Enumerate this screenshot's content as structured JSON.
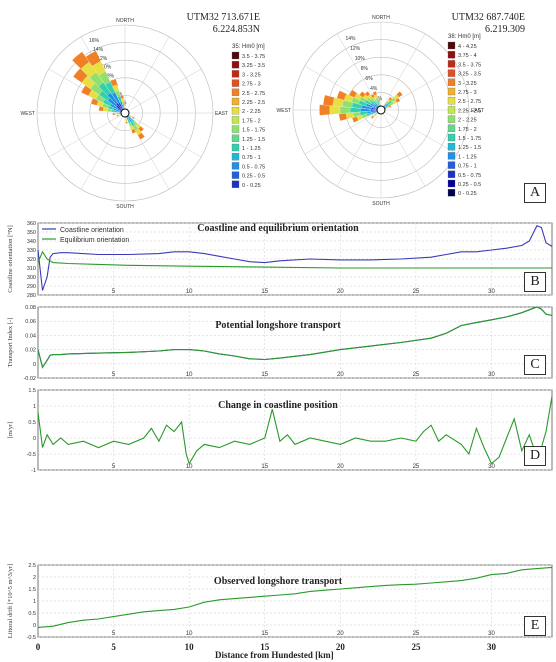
{
  "roses": [
    {
      "coord_line1": "UTM32  713.671E",
      "coord_line2": "6.224.853N",
      "legend_title": "35: Hm0 [m]",
      "legend": [
        "3.5 - 3.75",
        "3.25 - 3.5",
        "3 - 3.25",
        "2.75 - 3",
        "2.5 - 2.75",
        "2.25 - 2.5",
        "2 - 2.25",
        "1.75 - 2",
        "1.5 - 1.75",
        "1.25 - 1.5",
        "1 - 1.25",
        "0.75 - 1",
        "0.5 - 0.75",
        "0.25 - 0.5",
        "0 - 0.25"
      ],
      "ring_labels": [
        "2%",
        "4%",
        "6%",
        "8%",
        "10%",
        "12%",
        "14%",
        "16%"
      ],
      "directions": {
        "n": "NORTH",
        "s": "SOUTH",
        "e": "EAST",
        "w": "WEST"
      }
    },
    {
      "coord_line1": "UTM32  687.740E",
      "coord_line2": "6.219.309",
      "legend_title": "38: Hm0 [m]",
      "legend": [
        "4 - 4.25",
        "3.75 - 4",
        "3.5 - 3.75",
        "3.25 - 3.5",
        "3 - 3.25",
        "2.75 - 3",
        "2.5 - 2.75",
        "2.25 - 2.5",
        "2 - 2.25",
        "1.75 - 2",
        "1.5 - 1.75",
        "1.25 - 1.5",
        "1 - 1.25",
        "0.75 - 1",
        "0.5 - 0.75",
        "0.25 - 0.5",
        "0 - 0.25"
      ],
      "ring_labels": [
        "2%",
        "4%",
        "6%",
        "8%",
        "10%",
        "12%",
        "14%"
      ],
      "directions": {
        "n": "NORTH",
        "s": "SOUTH",
        "e": "EAST",
        "w": "WEST"
      }
    }
  ],
  "letters": {
    "a": "A",
    "b": "B",
    "c": "C",
    "d": "D",
    "e": "E"
  },
  "chart_data": [
    {
      "type": "line",
      "title": "Coastline and equilibrium orientation",
      "ylabel": "Coastline orientation [°N]",
      "ylim": [
        280,
        360
      ],
      "xlim": [
        0,
        34
      ],
      "yticks": [
        280,
        290,
        300,
        310,
        320,
        330,
        340,
        350,
        360
      ],
      "xticks": [
        5,
        10,
        15,
        20,
        25,
        30
      ],
      "legend": [
        "Coastline orientation",
        "Equilibrium orientation"
      ],
      "legend_position": "top-left",
      "series": [
        {
          "name": "Coastline orientation",
          "color": "#3a3ab8",
          "x": [
            0,
            0.3,
            0.6,
            0.8,
            1.0,
            1.5,
            2,
            4,
            6,
            8,
            9,
            10,
            11,
            12,
            13,
            14,
            15,
            16,
            18,
            20,
            22,
            24,
            26,
            27,
            28,
            29,
            30,
            31,
            32,
            32.5,
            33,
            33.3,
            33.6,
            34
          ],
          "y": [
            330,
            285,
            300,
            322,
            326,
            327,
            327,
            325,
            325,
            326,
            328,
            328,
            326,
            323,
            320,
            317,
            316,
            318,
            320,
            319,
            319,
            320,
            322,
            325,
            328,
            328,
            330,
            332,
            335,
            340,
            357,
            355,
            338,
            334
          ]
        },
        {
          "name": "Equilibrium orientation",
          "color": "#2a9a2a",
          "x": [
            0,
            0.3,
            0.6,
            1,
            2,
            4,
            6,
            10,
            15,
            20,
            25,
            30,
            34
          ],
          "y": [
            316,
            328,
            320,
            316,
            315,
            314,
            313,
            312,
            311,
            310,
            310,
            310,
            310
          ]
        }
      ]
    },
    {
      "type": "line",
      "title": "Potential longshore transport",
      "ylabel": "Transport Index [-]",
      "ylim": [
        -0.02,
        0.08
      ],
      "xlim": [
        0,
        34
      ],
      "yticks": [
        -0.02,
        0,
        0.02,
        0.04,
        0.06,
        0.08
      ],
      "xticks": [
        5,
        10,
        15,
        20,
        25,
        30
      ],
      "series": [
        {
          "name": "Potential longshore transport",
          "color": "#3a3ab8",
          "x": [
            0,
            0.3,
            0.6,
            0.8,
            1.0,
            1.5,
            2,
            4,
            6,
            8,
            9,
            10,
            11,
            12,
            13,
            14,
            15,
            16,
            18,
            20,
            22,
            24,
            26,
            27,
            28,
            29,
            30,
            31,
            32,
            32.5,
            33,
            33.3,
            33.6,
            34
          ],
          "y": [
            0.02,
            -0.005,
            0.005,
            0.012,
            0.013,
            0.013,
            0.014,
            0.015,
            0.016,
            0.018,
            0.02,
            0.02,
            0.018,
            0.014,
            0.011,
            0.007,
            0.006,
            0.008,
            0.013,
            0.02,
            0.025,
            0.03,
            0.036,
            0.043,
            0.054,
            0.058,
            0.062,
            0.066,
            0.072,
            0.076,
            0.08,
            0.077,
            0.07,
            0.068
          ]
        },
        {
          "name": "Potential longshore transport (green)",
          "color": "#2a9a2a",
          "x": [
            0,
            0.3,
            0.6,
            0.8,
            1.0,
            1.5,
            2,
            4,
            6,
            8,
            9,
            10,
            11,
            12,
            13,
            14,
            15,
            16,
            18,
            20,
            22,
            24,
            26,
            27,
            28,
            29,
            30,
            31,
            32,
            32.5,
            33,
            33.3,
            33.6,
            34
          ],
          "y": [
            0.02,
            -0.005,
            0.005,
            0.012,
            0.013,
            0.013,
            0.014,
            0.015,
            0.016,
            0.018,
            0.02,
            0.02,
            0.018,
            0.014,
            0.011,
            0.007,
            0.006,
            0.008,
            0.013,
            0.02,
            0.025,
            0.03,
            0.036,
            0.043,
            0.054,
            0.058,
            0.062,
            0.066,
            0.072,
            0.076,
            0.08,
            0.077,
            0.07,
            0.068
          ]
        }
      ]
    },
    {
      "type": "line",
      "title": "Change in coastline position",
      "ylabel": "[m/yr]",
      "ylim": [
        -1,
        1.5
      ],
      "xlim": [
        0,
        34
      ],
      "yticks": [
        -1,
        -0.5,
        0,
        0.5,
        1,
        1.5
      ],
      "xticks": [
        5,
        10,
        15,
        20,
        25,
        30
      ],
      "series": [
        {
          "name": "Change in coastline position",
          "color": "#2a9a2a",
          "x": [
            0,
            0.3,
            0.6,
            1,
            1.5,
            2,
            3,
            4,
            5,
            6,
            7,
            7.5,
            8,
            8.5,
            9,
            9.5,
            9.8,
            10,
            10.5,
            11,
            12,
            13,
            14,
            15,
            15.5,
            16,
            16.5,
            17,
            18,
            19,
            20,
            21,
            22,
            23,
            24,
            25,
            25.5,
            26,
            26.5,
            27,
            28,
            28.5,
            29,
            29.5,
            30,
            30.5,
            31,
            31.5,
            32,
            32.5,
            33,
            33.3,
            33.6,
            34
          ],
          "y": [
            0.8,
            -0.3,
            0.1,
            -0.2,
            0.0,
            -0.2,
            -0.1,
            -0.3,
            -0.1,
            -0.2,
            0.0,
            0.3,
            -0.1,
            0.4,
            0.2,
            0.5,
            -0.5,
            -0.8,
            -0.4,
            -0.2,
            -0.3,
            -0.1,
            -0.2,
            0.0,
            0.9,
            -0.1,
            0.1,
            -0.2,
            0.0,
            -0.1,
            -0.2,
            0.0,
            -0.1,
            -0.1,
            0.0,
            -0.1,
            0.2,
            0.4,
            -0.1,
            0.1,
            -0.2,
            -0.5,
            0.3,
            -0.3,
            -0.8,
            -0.6,
            0.0,
            0.6,
            -0.4,
            0.1,
            -0.6,
            -0.3,
            0.2,
            1.3
          ]
        }
      ]
    },
    {
      "type": "line",
      "title": "Observed longshore transport",
      "ylabel": "Littoral drift [*10^5 m^3/yr]",
      "ylim": [
        -0.5,
        2.5
      ],
      "xlim": [
        0,
        34
      ],
      "yticks": [
        -0.5,
        0,
        0.5,
        1,
        1.5,
        2,
        2.5
      ],
      "xticks": [
        5,
        10,
        15,
        20,
        25,
        30
      ],
      "series": [
        {
          "name": "Observed longshore transport",
          "color": "#2a9a2a",
          "x": [
            0,
            1,
            2,
            3,
            4,
            5,
            6,
            7,
            8,
            9,
            10,
            11,
            12,
            13,
            14,
            15,
            16,
            17,
            18,
            19,
            20,
            21,
            22,
            23,
            24,
            25,
            26,
            27,
            28,
            29,
            30,
            31,
            32,
            33,
            34
          ],
          "y": [
            -0.1,
            -0.05,
            0.1,
            0.2,
            0.25,
            0.35,
            0.45,
            0.55,
            0.6,
            0.65,
            0.75,
            0.95,
            1.05,
            1.1,
            1.15,
            1.2,
            1.25,
            1.3,
            1.4,
            1.45,
            1.5,
            1.55,
            1.6,
            1.65,
            1.68,
            1.7,
            1.75,
            1.8,
            1.85,
            1.95,
            2.1,
            2.15,
            2.3,
            2.35,
            2.4
          ]
        }
      ]
    }
  ],
  "x_axis": {
    "ticks": [
      0,
      5,
      10,
      15,
      20,
      25,
      30
    ],
    "label": "Distance from Hundested [km]"
  }
}
